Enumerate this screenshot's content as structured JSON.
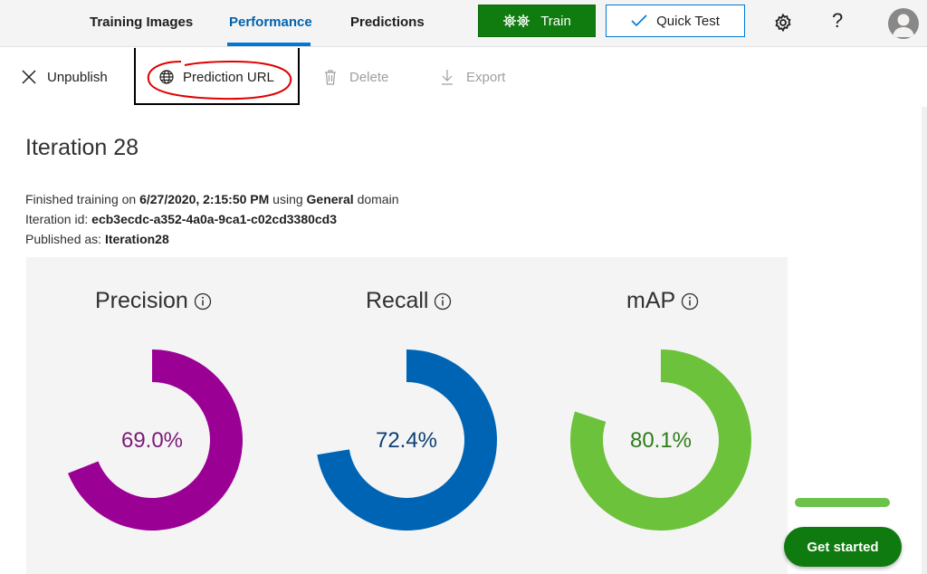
{
  "nav": {
    "tabs": [
      {
        "label": "Training Images"
      },
      {
        "label": "Performance"
      },
      {
        "label": "Predictions"
      }
    ],
    "active_tab": "Performance",
    "train_label": "Train",
    "quick_test_label": "Quick Test",
    "help_label": "?"
  },
  "commands": {
    "unpublish": "Unpublish",
    "prediction_url": "Prediction URL",
    "delete": "Delete",
    "export": "Export"
  },
  "iteration": {
    "title": "Iteration 28",
    "finished_prefix": "Finished training on ",
    "finished_date": "6/27/2020, 2:15:50 PM",
    "using": " using ",
    "domain": "General",
    "domain_suffix": " domain",
    "id_label": "Iteration id: ",
    "id_value": "ecb3ecdc-a352-4a0a-9ca1-c02cd3380cd3",
    "published_label": "Published as: ",
    "published_value": "Iteration28"
  },
  "metrics": [
    {
      "name": "Precision",
      "display": "69.0%",
      "value": 69.0,
      "color": "#9b0095",
      "text_color": "#7b1a78"
    },
    {
      "name": "Recall",
      "display": "72.4%",
      "value": 72.4,
      "color": "#0064b4",
      "text_color": "#0c3f73"
    },
    {
      "name": "mAP",
      "display": "80.1%",
      "value": 80.1,
      "color": "#6cc23a",
      "text_color": "#2e7d1a"
    }
  ],
  "get_started": {
    "label": "Get started",
    "progress": 1.0
  },
  "colors": {
    "accent": "#0078d4",
    "train_green": "#107c10",
    "annotation_red": "#e00000"
  }
}
